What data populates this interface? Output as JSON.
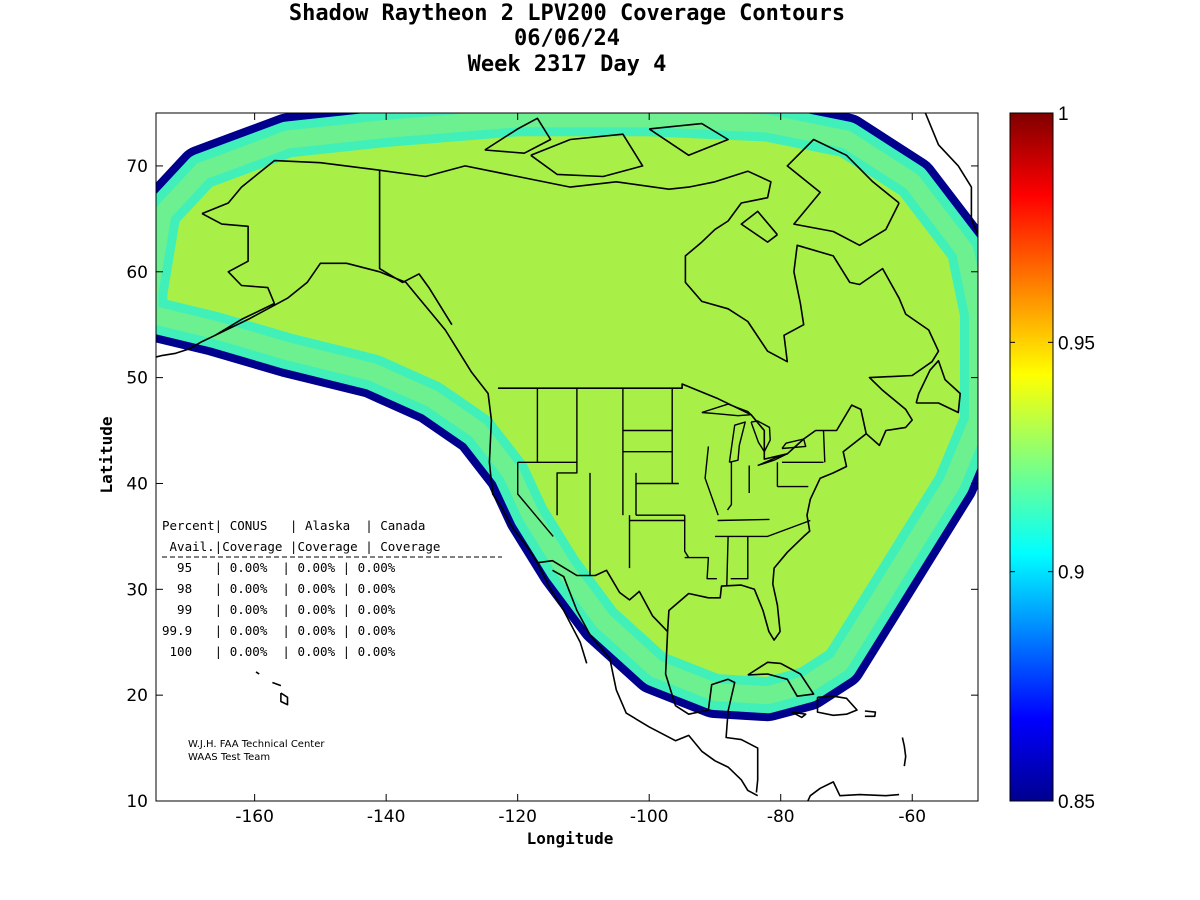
{
  "title": {
    "line1": "Shadow Raytheon 2 LPV200 Coverage Contours",
    "line2": "06/06/24",
    "line3": "Week 2317 Day 4"
  },
  "axes": {
    "xlabel": "Longitude",
    "ylabel": "Latitude",
    "xlim": [
      -175,
      -50
    ],
    "ylim": [
      10,
      75
    ],
    "xticks": [
      -160,
      -140,
      -120,
      -100,
      -80,
      -60
    ],
    "yticks": [
      10,
      20,
      30,
      40,
      50,
      60,
      70
    ],
    "xtick_labels": [
      "-160",
      "-140",
      "-120",
      "-100",
      "-80",
      "-60"
    ],
    "ytick_labels": [
      "10",
      "20",
      "30",
      "40",
      "50",
      "60",
      "70"
    ]
  },
  "colorbar": {
    "range": [
      0.85,
      1
    ],
    "tick_labels": [
      "1",
      "0.95",
      "0.9",
      "0.85"
    ],
    "tick_values": [
      1,
      0.95,
      0.9,
      0.85
    ]
  },
  "table": {
    "header1": "Percent| CONUS   | Alaska  | Canada",
    "header2": " Avail.|Coverage |Coverage | Coverage",
    "rows": [
      "  95   | 0.00%  | 0.00% | 0.00%",
      "  98   | 0.00%  | 0.00% | 0.00%",
      "  99   | 0.00%  | 0.00% | 0.00%",
      "99.9   | 0.00%  | 0.00% | 0.00%",
      " 100   | 0.00%  | 0.00% | 0.00%"
    ]
  },
  "credits": {
    "line1": "W.J.H. FAA Technical Center",
    "line2": "WAAS Test Team"
  },
  "colors": {
    "coverage_fill": "#a8ef48",
    "band_outer": "#00008c",
    "band_blue": "#0038ff",
    "band_lightblue": "#00b0ff",
    "band_cyan": "#00e8f0",
    "band_aqua": "#40f0b8",
    "band_teal": "#6cf090",
    "coastline": "#000000"
  }
}
